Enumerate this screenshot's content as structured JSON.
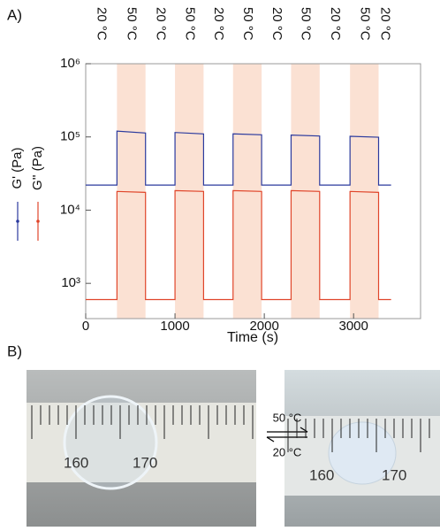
{
  "chart_data": {
    "type": "line",
    "label": "A)",
    "x_label": "Time (s)",
    "x": [
      0,
      350,
      350,
      670,
      670,
      1000,
      1000,
      1320,
      1320,
      1650,
      1650,
      1970,
      1970,
      2300,
      2300,
      2620,
      2620,
      2960,
      2960,
      3280,
      3280,
      3420
    ],
    "series": [
      {
        "name": "G' (Pa)",
        "color": "#2b3a9e",
        "values": [
          22000,
          22000,
          120000,
          113000,
          22000,
          22000,
          115000,
          110000,
          22000,
          22000,
          110000,
          107000,
          22000,
          22000,
          106000,
          103000,
          22000,
          22000,
          102000,
          99000,
          22000,
          22000
        ]
      },
      {
        "name": "G'' (Pa)",
        "color": "#e0452a",
        "values": [
          600,
          600,
          18000,
          17500,
          600,
          600,
          18500,
          18000,
          600,
          600,
          18500,
          18000,
          600,
          600,
          18500,
          18000,
          600,
          600,
          18000,
          17500,
          600,
          600
        ]
      }
    ],
    "shaded_regions": [
      [
        350,
        670
      ],
      [
        1000,
        1320
      ],
      [
        1650,
        1970
      ],
      [
        2300,
        2620
      ],
      [
        2960,
        3280
      ]
    ],
    "shade_color": "#fbe1d3",
    "temperature_labels": [
      "20 °C",
      "50 °C",
      "20 °C",
      "50 °C",
      "20 °C",
      "50 °C",
      "20 °C",
      "50 °C",
      "20 °C",
      "50 °C",
      "20 °C"
    ],
    "xlim": [
      0,
      3750
    ],
    "xticks": [
      0,
      1000,
      2000,
      3000
    ],
    "log_y": true,
    "ylim": [
      330,
      1000000
    ],
    "yticks": [
      {
        "value": 1000,
        "label": "10³"
      },
      {
        "value": 10000,
        "label": "10⁴"
      },
      {
        "value": 100000,
        "label": "10⁵"
      },
      {
        "value": 1000000,
        "label": "10⁶"
      }
    ]
  },
  "panel_b": {
    "label": "B)",
    "forward": "50 °C",
    "backward": "20 °C",
    "left_ruler": [
      "160",
      "170"
    ],
    "right_ruler": [
      "160",
      "170"
    ]
  }
}
